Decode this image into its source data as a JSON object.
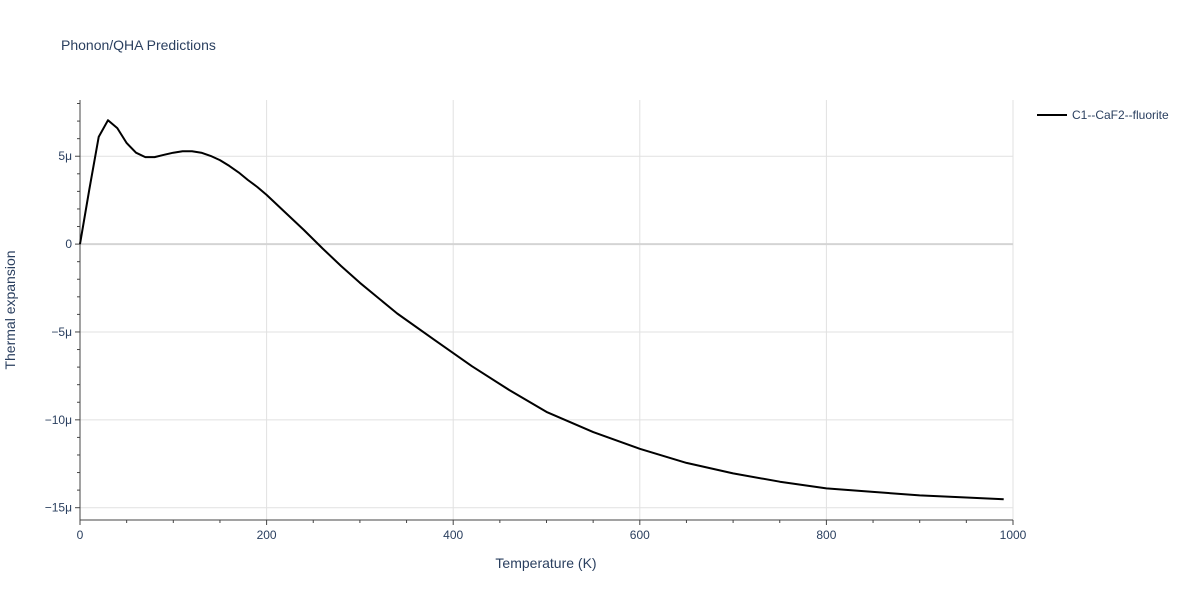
{
  "chart_data": {
    "type": "line",
    "title": "Phonon/QHA Predictions",
    "xlabel": "Temperature (K)",
    "ylabel": "Thermal expansion",
    "xlim": [
      0,
      1000
    ],
    "ylim": [
      -15.7,
      8.2
    ],
    "y_unit_scale": "1e-6",
    "x_ticks": [
      0,
      200,
      400,
      600,
      800,
      1000
    ],
    "x_tick_labels": [
      "0",
      "200",
      "400",
      "600",
      "800",
      "1000"
    ],
    "y_ticks": [
      5,
      0,
      -5,
      -10,
      -15
    ],
    "y_tick_labels": [
      "5μ",
      "0",
      "−5μ",
      "−10μ",
      "−15μ"
    ],
    "grid": true,
    "legend_position": "top-right",
    "series": [
      {
        "name": "C1--CaF2--fluorite",
        "color": "#000000",
        "x": [
          0,
          10,
          20,
          30,
          40,
          50,
          60,
          70,
          80,
          90,
          100,
          110,
          120,
          130,
          140,
          150,
          160,
          170,
          180,
          190,
          200,
          220,
          240,
          260,
          280,
          300,
          340,
          380,
          420,
          460,
          500,
          550,
          600,
          650,
          700,
          750,
          800,
          850,
          900,
          950,
          990
        ],
        "y": [
          0,
          3.1,
          6.1,
          7.05,
          6.6,
          5.75,
          5.2,
          4.95,
          4.95,
          5.08,
          5.2,
          5.28,
          5.28,
          5.2,
          5.02,
          4.78,
          4.45,
          4.08,
          3.65,
          3.25,
          2.8,
          1.8,
          0.8,
          -0.25,
          -1.25,
          -2.2,
          -3.95,
          -5.45,
          -6.95,
          -8.3,
          -9.55,
          -10.7,
          -11.65,
          -12.45,
          -13.05,
          -13.52,
          -13.9,
          -14.1,
          -14.3,
          -14.42,
          -14.52
        ]
      }
    ]
  }
}
